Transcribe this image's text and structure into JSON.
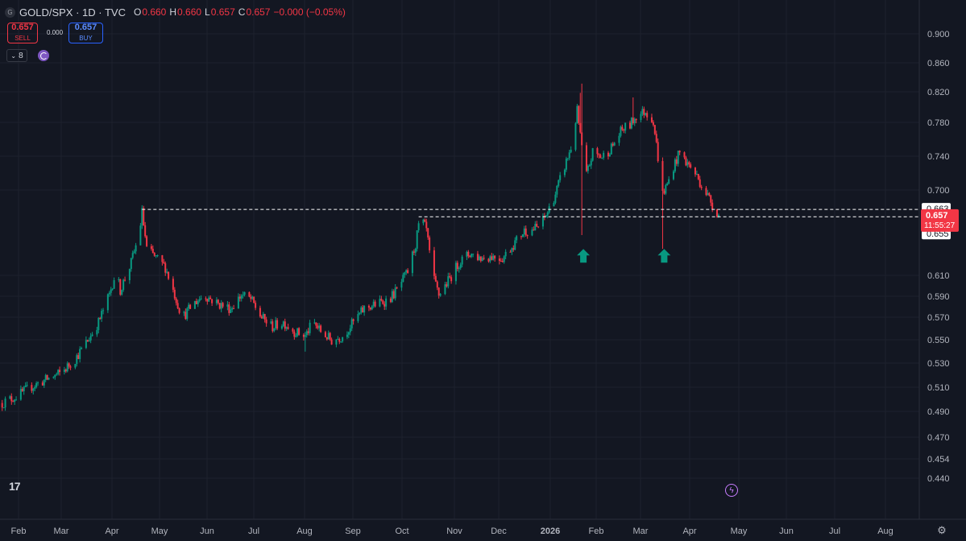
{
  "header": {
    "symbol_title": "GOLD/SPX · 1D · TVC",
    "symbol_icon": "G",
    "ohlc": [
      {
        "label": "O",
        "value": "0.660"
      },
      {
        "label": "H",
        "value": "0.660"
      },
      {
        "label": "L",
        "value": "0.657"
      },
      {
        "label": "C",
        "value": "0.657"
      }
    ],
    "change": "−0.000 (−0.05%)"
  },
  "trade": {
    "sell_price": "0.657",
    "sell_label": "SELL",
    "spread": "0.000",
    "buy_price": "0.657",
    "buy_label": "BUY"
  },
  "indicators_count": "8",
  "colors": {
    "background": "#131722",
    "up": "#089981",
    "down": "#f23645",
    "grid": "#1e222d",
    "text": "#b2b5be"
  },
  "chart_data": {
    "type": "candlestick",
    "x_labels": [
      "Feb",
      "Mar",
      "Apr",
      "May",
      "Jun",
      "Jul",
      "Aug",
      "Sep",
      "Oct",
      "Nov",
      "Dec",
      "2026",
      "Feb",
      "Mar",
      "Apr",
      "May",
      "Jun",
      "Jul",
      "Aug"
    ],
    "y_ticks": [
      "0.900",
      "0.860",
      "0.820",
      "0.780",
      "0.740",
      "0.700",
      "0.610",
      "0.590",
      "0.570",
      "0.550",
      "0.530",
      "0.510",
      "0.490",
      "0.470",
      "0.454",
      "0.440"
    ],
    "x_range": [
      "2025-02-01",
      "2026-08-31"
    ],
    "closes": [
      [
        "2025-01-22",
        0.452
      ],
      [
        "2025-02-01",
        0.46
      ],
      [
        "2025-02-10",
        0.47
      ],
      [
        "2025-02-20",
        0.478
      ],
      [
        "2025-03-01",
        0.485
      ],
      [
        "2025-03-10",
        0.5
      ],
      [
        "2025-03-18",
        0.52
      ],
      [
        "2025-03-25",
        0.54
      ],
      [
        "2025-04-01",
        0.57
      ],
      [
        "2025-04-05",
        0.595
      ],
      [
        "2025-04-08",
        0.575
      ],
      [
        "2025-04-15",
        0.605
      ],
      [
        "2025-04-20",
        0.635
      ],
      [
        "2025-04-22",
        0.66
      ],
      [
        "2025-04-25",
        0.62
      ],
      [
        "2025-05-01",
        0.61
      ],
      [
        "2025-05-07",
        0.6
      ],
      [
        "2025-05-12",
        0.575
      ],
      [
        "2025-05-18",
        0.545
      ],
      [
        "2025-05-25",
        0.56
      ],
      [
        "2025-06-01",
        0.57
      ],
      [
        "2025-06-10",
        0.56
      ],
      [
        "2025-06-18",
        0.555
      ],
      [
        "2025-06-25",
        0.57
      ],
      [
        "2025-07-01",
        0.565
      ],
      [
        "2025-07-08",
        0.545
      ],
      [
        "2025-07-15",
        0.535
      ],
      [
        "2025-07-22",
        0.54
      ],
      [
        "2025-07-29",
        0.53
      ],
      [
        "2025-08-05",
        0.525
      ],
      [
        "2025-08-10",
        0.54
      ],
      [
        "2025-08-15",
        0.53
      ],
      [
        "2025-08-22",
        0.52
      ],
      [
        "2025-08-29",
        0.525
      ],
      [
        "2025-09-05",
        0.54
      ],
      [
        "2025-09-12",
        0.555
      ],
      [
        "2025-09-20",
        0.56
      ],
      [
        "2025-09-28",
        0.565
      ],
      [
        "2025-10-03",
        0.575
      ],
      [
        "2025-10-10",
        0.595
      ],
      [
        "2025-10-15",
        0.625
      ],
      [
        "2025-10-18",
        0.655
      ],
      [
        "2025-10-22",
        0.64
      ],
      [
        "2025-10-26",
        0.59
      ],
      [
        "2025-10-30",
        0.57
      ],
      [
        "2025-11-05",
        0.585
      ],
      [
        "2025-11-12",
        0.605
      ],
      [
        "2025-11-19",
        0.615
      ],
      [
        "2025-11-26",
        0.61
      ],
      [
        "2025-12-03",
        0.612
      ],
      [
        "2025-12-10",
        0.61
      ],
      [
        "2025-12-17",
        0.625
      ],
      [
        "2025-12-24",
        0.64
      ],
      [
        "2025-12-28",
        0.64
      ],
      [
        "2026-01-03",
        0.645
      ],
      [
        "2026-01-08",
        0.66
      ],
      [
        "2026-01-13",
        0.68
      ],
      [
        "2026-01-18",
        0.705
      ],
      [
        "2026-01-23",
        0.73
      ],
      [
        "2026-01-27",
        0.77
      ],
      [
        "2026-01-30",
        0.73
      ],
      [
        "2026-02-02",
        0.7
      ],
      [
        "2026-02-06",
        0.725
      ],
      [
        "2026-02-12",
        0.72
      ],
      [
        "2026-02-18",
        0.73
      ],
      [
        "2026-02-25",
        0.75
      ],
      [
        "2026-03-02",
        0.755
      ],
      [
        "2026-03-06",
        0.765
      ],
      [
        "2026-03-12",
        0.77
      ],
      [
        "2026-03-17",
        0.76
      ],
      [
        "2026-03-20",
        0.72
      ],
      [
        "2026-03-23",
        0.68
      ],
      [
        "2026-03-26",
        0.69
      ],
      [
        "2026-03-30",
        0.71
      ],
      [
        "2026-04-03",
        0.725
      ],
      [
        "2026-04-07",
        0.715
      ],
      [
        "2026-04-12",
        0.705
      ],
      [
        "2026-04-17",
        0.69
      ],
      [
        "2026-04-22",
        0.675
      ],
      [
        "2026-04-26",
        0.662
      ],
      [
        "2026-04-28",
        0.657
      ]
    ],
    "horizontal_levels": [
      {
        "value": 0.663,
        "label": "0.663"
      },
      {
        "value": 0.655,
        "label": "0.655"
      }
    ],
    "level_start_dates": [
      "2025-04-22",
      "2025-10-17"
    ],
    "last_price": {
      "value": 0.657,
      "label": "0.657",
      "countdown": "11:55:27"
    },
    "markers": [
      {
        "date": "2026-01-31",
        "price": 0.612,
        "kind": "up-arrow"
      },
      {
        "date": "2026-03-24",
        "price": 0.612,
        "kind": "up-arrow"
      }
    ],
    "grid": true
  }
}
